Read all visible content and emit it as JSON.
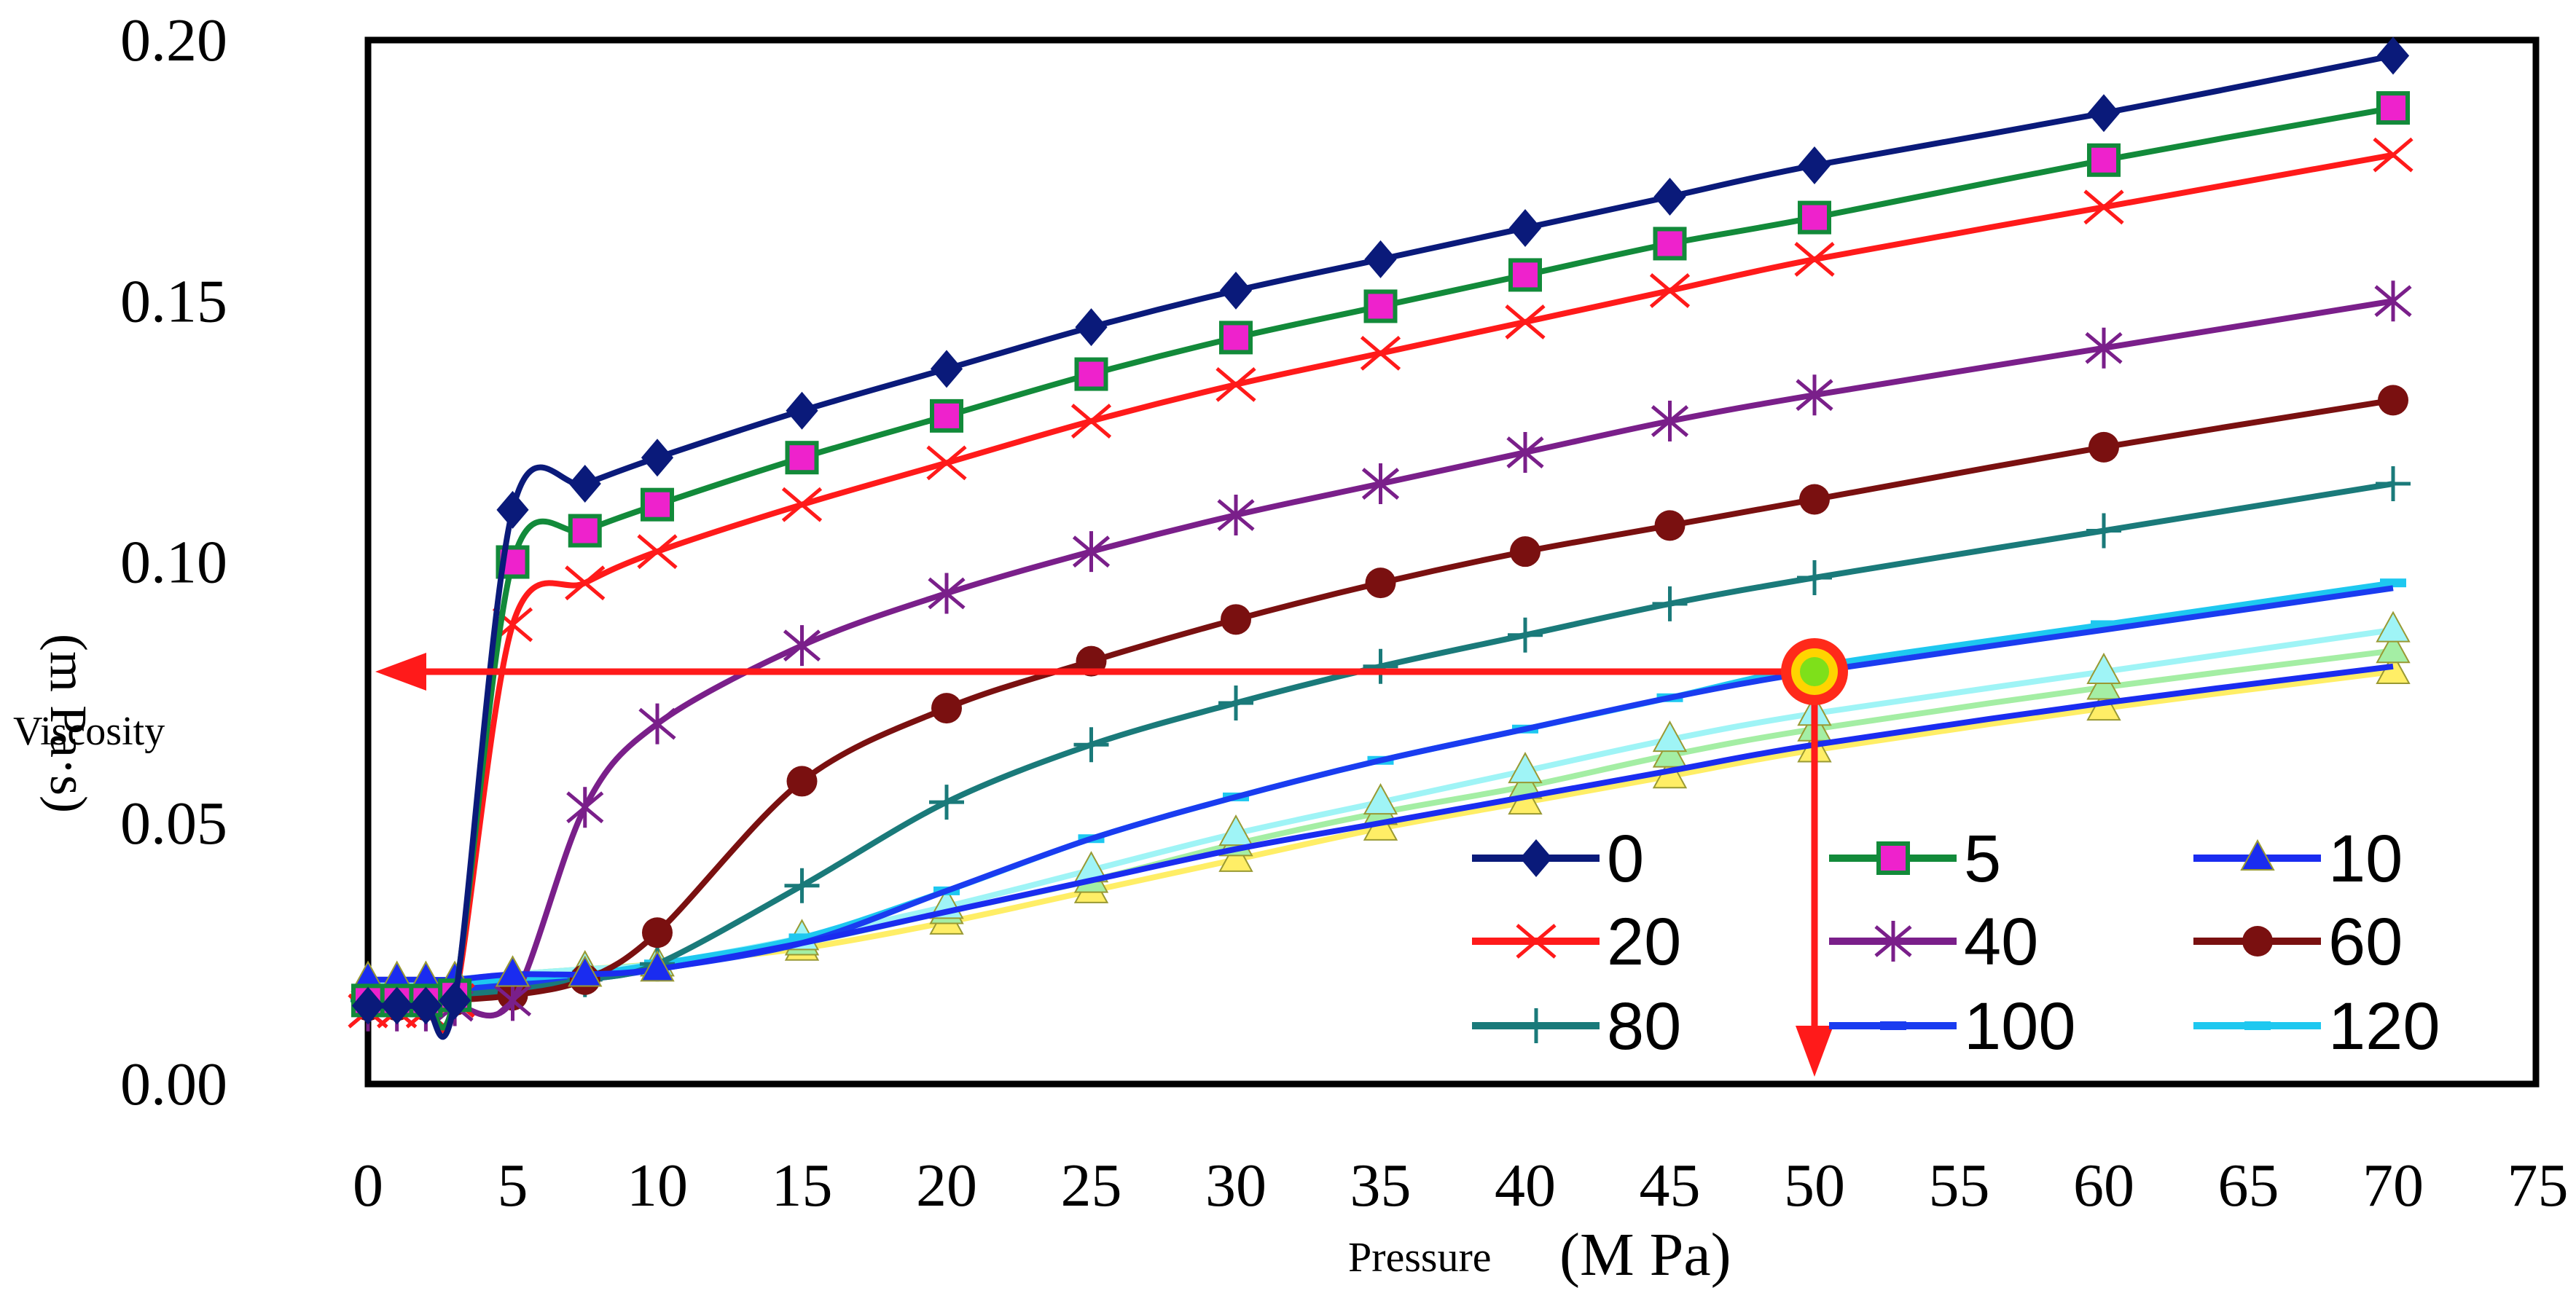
{
  "chart_data": {
    "type": "line",
    "title": "",
    "xlabel_prefix": "Pressure",
    "xlabel_unit": "(M Pa)",
    "ylabel_prefix": "Viscosity",
    "ylabel_unit": "(m Pa·s)",
    "xlim": [
      0,
      75
    ],
    "ylim": [
      0.0,
      0.2
    ],
    "xticks": [
      0,
      5,
      10,
      15,
      20,
      25,
      30,
      35,
      40,
      45,
      50,
      55,
      60,
      65,
      70,
      75
    ],
    "yticks": [
      0.0,
      0.05,
      0.1,
      0.15,
      0.2
    ],
    "ytick_labels": [
      "0.00",
      "0.05",
      "0.10",
      "0.15",
      "0.20"
    ],
    "x": [
      0,
      1,
      2,
      3,
      5,
      7.5,
      10,
      15,
      20,
      25,
      30,
      35,
      40,
      45,
      50,
      60,
      70
    ],
    "legend_position": "bottom-right",
    "series": [
      {
        "name": "0",
        "color": "#0a1a7a",
        "marker": "diamond",
        "markers_at": [
          0,
          1,
          2,
          3,
          4,
          5,
          6,
          7,
          8,
          9,
          10,
          11,
          12,
          13,
          14,
          15,
          16
        ],
        "values": [
          0.015,
          0.015,
          0.015,
          0.016,
          0.11,
          0.115,
          0.12,
          0.129,
          0.137,
          0.145,
          0.152,
          0.158,
          0.164,
          0.17,
          0.176,
          0.186,
          0.197
        ]
      },
      {
        "name": "5",
        "color": "#128a3a",
        "marker": "square",
        "markers_at": [
          0,
          1,
          2,
          3,
          4,
          5,
          6,
          7,
          8,
          9,
          10,
          11,
          12,
          13,
          14,
          15,
          16
        ],
        "values": [
          0.016,
          0.016,
          0.016,
          0.017,
          0.1,
          0.106,
          0.111,
          0.12,
          0.128,
          0.136,
          0.143,
          0.149,
          0.155,
          0.161,
          0.166,
          0.177,
          0.187
        ]
      },
      {
        "name": "10",
        "color": "#1a2cf0",
        "marker": "triangle",
        "markers_at": [
          0,
          1,
          2,
          3,
          4,
          5,
          6
        ],
        "values": [
          0.02,
          0.02,
          0.02,
          0.02,
          0.021,
          0.021,
          0.022,
          0.027,
          0.033,
          0.039,
          0.045,
          0.05,
          0.055,
          0.06,
          0.065,
          0.073,
          0.08
        ]
      },
      {
        "name": "20",
        "color": "#ff1a1a",
        "marker": "x",
        "markers_at": [
          0,
          1,
          2,
          3,
          4,
          5,
          6,
          7,
          8,
          9,
          10,
          11,
          12,
          13,
          14,
          15,
          16
        ],
        "values": [
          0.014,
          0.014,
          0.014,
          0.016,
          0.088,
          0.096,
          0.102,
          0.111,
          0.119,
          0.127,
          0.134,
          0.14,
          0.146,
          0.152,
          0.158,
          0.168,
          0.178
        ]
      },
      {
        "name": "40",
        "color": "#7a1f8a",
        "marker": "asterisk",
        "markers_at": [
          0,
          1,
          2,
          3,
          4,
          5,
          6,
          7,
          8,
          9,
          10,
          11,
          12,
          13,
          14,
          15,
          16
        ],
        "values": [
          0.014,
          0.014,
          0.014,
          0.015,
          0.016,
          0.053,
          0.069,
          0.084,
          0.094,
          0.102,
          0.109,
          0.115,
          0.121,
          0.127,
          0.132,
          0.141,
          0.15
        ]
      },
      {
        "name": "60",
        "color": "#7a1010",
        "marker": "circle",
        "markers_at": [
          0,
          1,
          2,
          3,
          4,
          5,
          6,
          7,
          8,
          9,
          10,
          11,
          12,
          13,
          14,
          15,
          16
        ],
        "values": [
          0.015,
          0.015,
          0.015,
          0.016,
          0.017,
          0.02,
          0.029,
          0.058,
          0.072,
          0.081,
          0.089,
          0.096,
          0.102,
          0.107,
          0.112,
          0.122,
          0.131
        ]
      },
      {
        "name": "80",
        "color": "#1a7a7a",
        "marker": "plus",
        "markers_at": [
          0,
          1,
          2,
          3,
          4,
          5,
          6,
          7,
          8,
          9,
          10,
          11,
          12,
          13,
          14,
          15,
          16
        ],
        "values": [
          0.016,
          0.016,
          0.016,
          0.017,
          0.018,
          0.02,
          0.023,
          0.038,
          0.054,
          0.065,
          0.073,
          0.08,
          0.086,
          0.092,
          0.097,
          0.106,
          0.115
        ]
      },
      {
        "name": "100",
        "color": "#1a3cf0",
        "marker": "dash",
        "markers_at": [
          0,
          1,
          2,
          3
        ],
        "values": [
          0.017,
          0.017,
          0.017,
          0.018,
          0.019,
          0.02,
          0.022,
          0.027,
          0.037,
          0.047,
          0.055,
          0.062,
          0.068,
          0.074,
          0.079,
          0.087,
          0.095
        ]
      },
      {
        "name": "120",
        "color": "#1ec8f0",
        "marker": "dash",
        "markers_at": [
          0,
          1,
          2,
          3,
          4,
          5,
          6,
          7,
          8,
          9,
          10,
          11,
          12,
          13,
          14,
          15,
          16
        ],
        "values": [
          0.018,
          0.018,
          0.018,
          0.019,
          0.02,
          0.021,
          0.023,
          0.028,
          0.037,
          0.047,
          0.055,
          0.062,
          0.068,
          0.074,
          0.08,
          0.088,
          0.096
        ]
      },
      {
        "name": "",
        "color": "#9ff4f6",
        "marker": "triangle",
        "show_in_legend": false,
        "markers_at": [
          4,
          5,
          6,
          7,
          8,
          9,
          10,
          11,
          12,
          13,
          14,
          15,
          16
        ],
        "values": [
          0.019,
          0.019,
          0.019,
          0.02,
          0.021,
          0.022,
          0.023,
          0.028,
          0.034,
          0.041,
          0.048,
          0.054,
          0.06,
          0.066,
          0.071,
          0.079,
          0.087
        ]
      },
      {
        "name": "",
        "color": "#a4eea4",
        "marker": "triangle",
        "show_in_legend": false,
        "markers_at": [
          4,
          5,
          6,
          7,
          8,
          9,
          10,
          11,
          12,
          13,
          14,
          15,
          16
        ],
        "values": [
          0.019,
          0.019,
          0.019,
          0.02,
          0.021,
          0.022,
          0.023,
          0.027,
          0.033,
          0.039,
          0.046,
          0.052,
          0.057,
          0.063,
          0.068,
          0.076,
          0.083
        ]
      },
      {
        "name": "",
        "color": "#ffee66",
        "marker": "triangle",
        "show_in_legend": false,
        "markers_at": [
          0,
          1,
          2,
          3,
          4,
          5,
          6,
          7,
          8,
          9,
          10,
          11,
          12,
          13,
          14,
          15,
          16
        ],
        "values": [
          0.02,
          0.02,
          0.02,
          0.02,
          0.021,
          0.022,
          0.023,
          0.026,
          0.031,
          0.037,
          0.043,
          0.049,
          0.054,
          0.059,
          0.064,
          0.072,
          0.079
        ]
      }
    ],
    "annotation": {
      "point": {
        "x": 50,
        "y": 0.079
      },
      "arrow_color": "#ff1a1a",
      "arrow_to_y_axis": true,
      "arrow_to_x_axis": true
    }
  }
}
